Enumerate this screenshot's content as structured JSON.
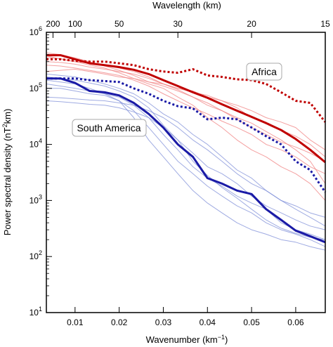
{
  "chart_data": {
    "type": "line",
    "xlabel": "Wavenumber (km",
    "xlabel_sup": "−1",
    "xlabel_close": ")",
    "ylabel": "Power spectral density (nT",
    "ylabel_sup": "2",
    "ylabel_close": "km)",
    "top_axis_label": "Wavelength (km)",
    "xlim": [
      0.0035,
      0.0667
    ],
    "ylim": [
      10,
      1000000
    ],
    "yscale": "log",
    "x_ticks": [
      0.01,
      0.02,
      0.03,
      0.04,
      0.05,
      0.06
    ],
    "x_tick_labels": [
      "0.01",
      "0.02",
      "0.03",
      "0.04",
      "0.05",
      "0.06"
    ],
    "y_ticks": [
      10,
      100,
      1000,
      10000,
      100000,
      1000000
    ],
    "y_tick_labels": [
      {
        "base": "10",
        "exp": "1"
      },
      {
        "base": "10",
        "exp": "2"
      },
      {
        "base": "10",
        "exp": "3"
      },
      {
        "base": "10",
        "exp": "4"
      },
      {
        "base": "10",
        "exp": "5"
      },
      {
        "base": "10",
        "exp": "6"
      }
    ],
    "top_ticks": [
      {
        "wavenumber": 0.005,
        "label": "200"
      },
      {
        "wavenumber": 0.01,
        "label": "100"
      },
      {
        "wavenumber": 0.02,
        "label": "50"
      },
      {
        "wavenumber": 0.0333,
        "label": "30"
      },
      {
        "wavenumber": 0.05,
        "label": "20"
      },
      {
        "wavenumber": 0.0667,
        "label": "15"
      }
    ],
    "annotations": [
      {
        "text": "Africa",
        "color": "#c00000",
        "near": "upper right"
      },
      {
        "text": "South America",
        "color": "#1a1aa6",
        "near": "center left"
      }
    ],
    "colors": {
      "africa": "#c00000",
      "africa_light": "#f08080",
      "south_america": "#1a1aa6",
      "south_america_light": "#7f8fd8"
    },
    "x": [
      0.0035,
      0.0067,
      0.01,
      0.0133,
      0.0167,
      0.02,
      0.0233,
      0.0267,
      0.03,
      0.0333,
      0.0367,
      0.04,
      0.0433,
      0.0467,
      0.05,
      0.0533,
      0.0567,
      0.06,
      0.0633,
      0.0667
    ],
    "series": [
      {
        "group": "africa",
        "style": "bold",
        "values": [
          390000,
          390000,
          330000,
          280000,
          260000,
          240000,
          215000,
          180000,
          140000,
          110000,
          85000,
          68000,
          52000,
          40000,
          31000,
          24000,
          18000,
          12500,
          8000,
          4800
        ]
      },
      {
        "group": "africa",
        "style": "dotted",
        "values": [
          330000,
          330000,
          310000,
          300000,
          300000,
          280000,
          260000,
          220000,
          200000,
          190000,
          220000,
          170000,
          160000,
          145000,
          140000,
          120000,
          85000,
          60000,
          55000,
          25000
        ]
      },
      {
        "group": "south_america",
        "style": "bold",
        "values": [
          150000,
          150000,
          125000,
          90000,
          85000,
          75000,
          55000,
          35000,
          20000,
          10000,
          6000,
          2500,
          2000,
          1500,
          1300,
          700,
          450,
          290,
          230,
          180
        ]
      },
      {
        "group": "south_america",
        "style": "dotted",
        "values": [
          150000,
          150000,
          150000,
          140000,
          135000,
          130000,
          100000,
          80000,
          60000,
          48000,
          44000,
          28000,
          30000,
          28000,
          20000,
          14000,
          10000,
          5000,
          3500,
          1400
        ]
      },
      {
        "group": "africa",
        "style": "thin",
        "values": [
          430000,
          400000,
          350000,
          300000,
          250000,
          210000,
          170000,
          130000,
          110000,
          90000,
          70000,
          55000,
          40000,
          30000,
          24000,
          17000,
          12000,
          8000,
          5000,
          2000
        ]
      },
      {
        "group": "africa",
        "style": "thin",
        "values": [
          300000,
          290000,
          270000,
          240000,
          220000,
          200000,
          180000,
          150000,
          120000,
          100000,
          90000,
          70000,
          60000,
          45000,
          30000,
          25000,
          18000,
          14000,
          10000,
          6000
        ]
      },
      {
        "group": "africa",
        "style": "thin",
        "values": [
          260000,
          250000,
          230000,
          210000,
          190000,
          170000,
          140000,
          110000,
          80000,
          60000,
          45000,
          35000,
          26000,
          20000,
          15000,
          10000,
          8000,
          6000,
          4000,
          3000
        ]
      },
      {
        "group": "africa",
        "style": "thin",
        "values": [
          380000,
          330000,
          300000,
          260000,
          230000,
          190000,
          150000,
          120000,
          100000,
          70000,
          50000,
          30000,
          20000,
          12000,
          8000,
          6000,
          4000,
          3000,
          2000,
          1000
        ]
      },
      {
        "group": "africa",
        "style": "thin",
        "values": [
          200000,
          210000,
          220000,
          200000,
          180000,
          160000,
          150000,
          130000,
          120000,
          100000,
          85000,
          75000,
          60000,
          50000,
          40000,
          30000,
          25000,
          20000,
          12000,
          8000
        ]
      },
      {
        "group": "africa",
        "style": "thin",
        "values": [
          350000,
          340000,
          300000,
          280000,
          260000,
          230000,
          200000,
          160000,
          120000,
          95000,
          70000,
          50000,
          40000,
          28000,
          20000,
          15000,
          11000,
          9000,
          7000,
          5000
        ]
      },
      {
        "group": "south_america",
        "style": "thin",
        "values": [
          180000,
          170000,
          160000,
          140000,
          120000,
          100000,
          80000,
          55000,
          35000,
          25000,
          15000,
          10000,
          6000,
          3500,
          2500,
          1500,
          1000,
          700,
          500,
          350
        ]
      },
      {
        "group": "south_america",
        "style": "thin",
        "values": [
          120000,
          110000,
          100000,
          90000,
          80000,
          70000,
          50000,
          30000,
          15000,
          8000,
          4000,
          2500,
          1800,
          1200,
          900,
          700,
          400,
          300,
          250,
          200
        ]
      },
      {
        "group": "south_america",
        "style": "thin",
        "values": [
          100000,
          100000,
          90000,
          80000,
          75000,
          60000,
          40000,
          20000,
          10000,
          5000,
          3000,
          1800,
          1200,
          800,
          600,
          400,
          300,
          250,
          200,
          150
        ]
      },
      {
        "group": "south_america",
        "style": "thin",
        "values": [
          70000,
          68000,
          65000,
          62000,
          60000,
          55000,
          50000,
          40000,
          30000,
          20000,
          12000,
          8000,
          5000,
          3000,
          2000,
          1500,
          1000,
          800,
          600,
          500
        ]
      },
      {
        "group": "south_america",
        "style": "thin",
        "values": [
          140000,
          130000,
          120000,
          100000,
          80000,
          60000,
          30000,
          12000,
          6000,
          3000,
          1500,
          900,
          600,
          400,
          300,
          250,
          200,
          180,
          150,
          130
        ]
      },
      {
        "group": "south_america",
        "style": "thin",
        "values": [
          60000,
          58000,
          55000,
          52000,
          50000,
          45000,
          38000,
          30000,
          20000,
          12000,
          7000,
          4000,
          3000,
          2000,
          1200,
          800,
          600,
          450,
          350,
          300
        ]
      },
      {
        "group": "south_america",
        "style": "thin",
        "values": [
          160000,
          150000,
          140000,
          125000,
          110000,
          90000,
          70000,
          45000,
          22000,
          12000,
          5000,
          2800,
          1700,
          1100,
          700,
          450,
          320,
          260,
          220,
          200
        ]
      }
    ]
  }
}
